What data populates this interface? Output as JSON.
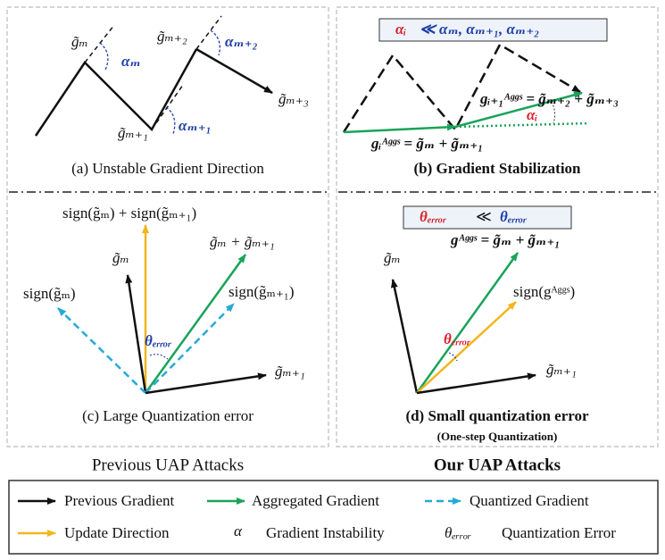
{
  "panels": [
    {
      "caption": "(a) Unstable Gradient Direction",
      "labels": [
        "g̃ₘ",
        "αₘ",
        "g̃ₘ₊₂",
        "αₘ₊₂",
        "g̃ₘ₊₃",
        "g̃ₘ₊₁",
        "αₘ₊₁"
      ]
    },
    {
      "caption": "(b) Gradient Stabilization",
      "box": [
        "αᵢ",
        "≪ αₘ, αₘ₊₁, αₘ₊₂"
      ],
      "labels": [
        "gᵢ₊₁ᴬᵍᵍˢ = g̃ₘ₊₂ + g̃ₘ₊₃",
        "αᵢ",
        "gᵢᴬᵍᵍˢ = g̃ₘ + g̃ₘ₊₁"
      ]
    },
    {
      "caption": "(c) Large Quantization error",
      "labels": [
        "sign(g̃ₘ) + sign(g̃ₘ₊₁)",
        "g̃ₘ",
        "g̃ₘ + g̃ₘ₊₁",
        "sign(g̃ₘ)",
        "sign(g̃ₘ₊₁)",
        "θₑᵣᵣₒᵣ",
        "g̃ₘ₊₁"
      ]
    },
    {
      "caption": "(d) Small quantization error",
      "subcaption": "(One-step Quantization)",
      "box": [
        "θₑᵣᵣₒᵣ",
        "≪",
        "θₑᵣᵣₒᵣ"
      ],
      "labels": [
        "gᴬᵍᵍˢ = g̃ₘ + g̃ₘ₊₁",
        "g̃ₘ",
        "sign(gᴬᵍᵍˢ)",
        "θₑᵣᵣₒᵣ",
        "g̃ₘ₊₁"
      ]
    }
  ],
  "column_titles": [
    "Previous UAP Attacks",
    "Our UAP Attacks"
  ],
  "legend": [
    "Previous Gradient",
    "Aggregated Gradient",
    "Quantized Gradient",
    "Update Direction",
    "α",
    "Gradient Instability",
    "θₑᵣᵣₒᵣ",
    "Quantization Error"
  ]
}
